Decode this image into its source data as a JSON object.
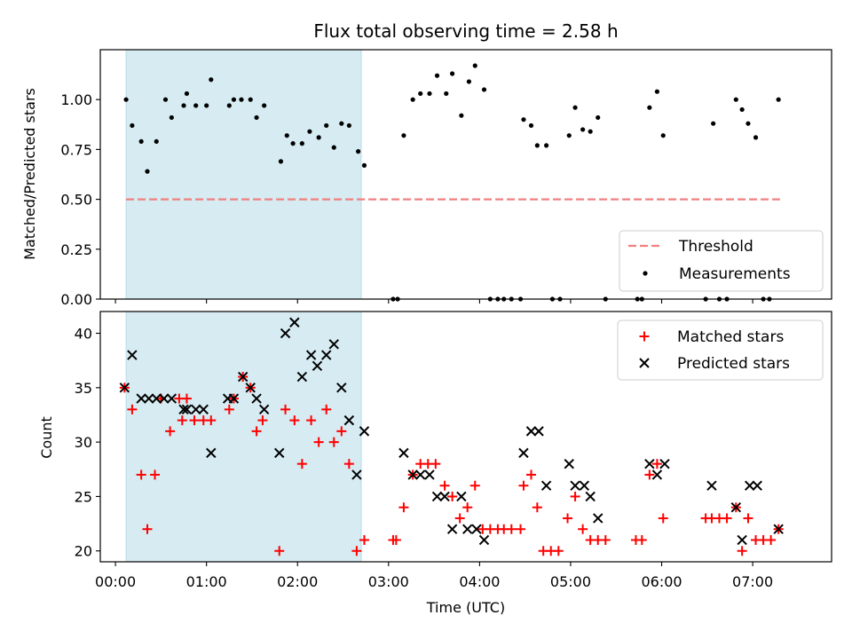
{
  "chart_data": [
    {
      "type": "scatter",
      "title": "Flux total observing time = 2.58 h",
      "xlabel": "",
      "ylabel": "Matched/Predicted stars",
      "ylim": [
        0.0,
        1.25
      ],
      "xlim": [
        "23:50",
        "07:52"
      ],
      "yticks": [
        "0.00",
        "0.25",
        "0.50",
        "0.75",
        "1.00"
      ],
      "shaded_interval": [
        "00:07",
        "02:42"
      ],
      "threshold": 0.5,
      "legend_position": "lower-right",
      "series": [
        {
          "name": "Threshold",
          "kind": "dashed-line",
          "color": "#f08080",
          "x": [
            "00:07",
            "07:18"
          ],
          "y": [
            0.5,
            0.5
          ]
        },
        {
          "name": "Measurements",
          "kind": "points",
          "color": "#000000",
          "points": [
            [
              "00:07",
              1.0
            ],
            [
              "00:11",
              0.87
            ],
            [
              "00:17",
              0.79
            ],
            [
              "00:21",
              0.64
            ],
            [
              "00:27",
              0.79
            ],
            [
              "00:33",
              1.0
            ],
            [
              "00:37",
              0.91
            ],
            [
              "00:45",
              0.97
            ],
            [
              "00:47",
              1.03
            ],
            [
              "00:53",
              0.97
            ],
            [
              "01:00",
              0.97
            ],
            [
              "01:03",
              1.1
            ],
            [
              "01:15",
              0.97
            ],
            [
              "01:18",
              1.0
            ],
            [
              "01:23",
              1.0
            ],
            [
              "01:29",
              1.0
            ],
            [
              "01:33",
              0.91
            ],
            [
              "01:38",
              0.97
            ],
            [
              "01:49",
              0.69
            ],
            [
              "01:53",
              0.82
            ],
            [
              "01:57",
              0.78
            ],
            [
              "02:03",
              0.78
            ],
            [
              "02:08",
              0.84
            ],
            [
              "02:14",
              0.81
            ],
            [
              "02:19",
              0.87
            ],
            [
              "02:24",
              0.76
            ],
            [
              "02:29",
              0.88
            ],
            [
              "02:34",
              0.87
            ],
            [
              "02:40",
              0.74
            ],
            [
              "02:44",
              0.67
            ],
            [
              "03:03",
              0.0
            ],
            [
              "03:06",
              0.0
            ],
            [
              "03:10",
              0.82
            ],
            [
              "03:16",
              1.0
            ],
            [
              "03:21",
              1.03
            ],
            [
              "03:27",
              1.03
            ],
            [
              "03:32",
              1.12
            ],
            [
              "03:38",
              1.03
            ],
            [
              "03:42",
              1.13
            ],
            [
              "03:48",
              0.92
            ],
            [
              "03:53",
              1.09
            ],
            [
              "03:57",
              1.17
            ],
            [
              "04:03",
              1.05
            ],
            [
              "04:07",
              0.0
            ],
            [
              "04:12",
              0.0
            ],
            [
              "04:16",
              0.0
            ],
            [
              "04:21",
              0.0
            ],
            [
              "04:27",
              0.0
            ],
            [
              "04:29",
              0.9
            ],
            [
              "04:34",
              0.87
            ],
            [
              "04:38",
              0.77
            ],
            [
              "04:44",
              0.77
            ],
            [
              "04:48",
              0.0
            ],
            [
              "04:53",
              0.0
            ],
            [
              "04:59",
              0.82
            ],
            [
              "05:03",
              0.96
            ],
            [
              "05:08",
              0.85
            ],
            [
              "05:13",
              0.84
            ],
            [
              "05:18",
              0.91
            ],
            [
              "05:23",
              0.0
            ],
            [
              "05:44",
              0.0
            ],
            [
              "05:47",
              0.0
            ],
            [
              "05:52",
              0.96
            ],
            [
              "05:57",
              1.04
            ],
            [
              "06:01",
              0.82
            ],
            [
              "06:29",
              0.0
            ],
            [
              "06:34",
              0.88
            ],
            [
              "06:38",
              0.0
            ],
            [
              "06:43",
              0.0
            ],
            [
              "06:49",
              1.0
            ],
            [
              "06:53",
              0.95
            ],
            [
              "06:57",
              0.88
            ],
            [
              "07:02",
              0.81
            ],
            [
              "07:07",
              0.0
            ],
            [
              "07:11",
              0.0
            ],
            [
              "07:17",
              1.0
            ]
          ]
        }
      ]
    },
    {
      "type": "scatter",
      "title": "",
      "xlabel": "Time (UTC)",
      "ylabel": "Count",
      "ylim": [
        19,
        42
      ],
      "xlim": [
        "23:50",
        "07:52"
      ],
      "yticks": [
        "20",
        "25",
        "30",
        "35",
        "40"
      ],
      "xticks": [
        "00:00",
        "01:00",
        "02:00",
        "03:00",
        "04:00",
        "05:00",
        "06:00",
        "07:00"
      ],
      "shaded_interval": [
        "00:07",
        "02:42"
      ],
      "legend_position": "upper-right",
      "series": [
        {
          "name": "Matched stars",
          "marker": "+",
          "color": "#ff0000",
          "points": [
            [
              "00:06",
              35
            ],
            [
              "00:11",
              33
            ],
            [
              "00:17",
              27
            ],
            [
              "00:21",
              22
            ],
            [
              "00:26",
              27
            ],
            [
              "00:30",
              34
            ],
            [
              "00:36",
              31
            ],
            [
              "00:42",
              34
            ],
            [
              "00:44",
              32
            ],
            [
              "00:47",
              34
            ],
            [
              "00:52",
              32
            ],
            [
              "00:58",
              32
            ],
            [
              "01:03",
              32
            ],
            [
              "01:15",
              33
            ],
            [
              "01:18",
              34
            ],
            [
              "01:24",
              36
            ],
            [
              "01:29",
              35
            ],
            [
              "01:33",
              31
            ],
            [
              "01:37",
              32
            ],
            [
              "01:48",
              20
            ],
            [
              "01:52",
              33
            ],
            [
              "01:58",
              32
            ],
            [
              "02:03",
              28
            ],
            [
              "02:09",
              32
            ],
            [
              "02:14",
              30
            ],
            [
              "02:19",
              33
            ],
            [
              "02:24",
              30
            ],
            [
              "02:29",
              31
            ],
            [
              "02:34",
              28
            ],
            [
              "02:39",
              20
            ],
            [
              "02:44",
              21
            ],
            [
              "03:03",
              21
            ],
            [
              "03:05",
              21
            ],
            [
              "03:10",
              24
            ],
            [
              "03:16",
              27
            ],
            [
              "03:21",
              28
            ],
            [
              "03:26",
              28
            ],
            [
              "03:31",
              28
            ],
            [
              "03:37",
              26
            ],
            [
              "03:42",
              25
            ],
            [
              "03:47",
              23
            ],
            [
              "03:52",
              24
            ],
            [
              "03:57",
              26
            ],
            [
              "04:02",
              22
            ],
            [
              "04:07",
              22
            ],
            [
              "04:12",
              22
            ],
            [
              "04:16",
              22
            ],
            [
              "04:21",
              22
            ],
            [
              "04:27",
              22
            ],
            [
              "04:29",
              26
            ],
            [
              "04:34",
              27
            ],
            [
              "04:38",
              24
            ],
            [
              "04:42",
              20
            ],
            [
              "04:47",
              20
            ],
            [
              "04:52",
              20
            ],
            [
              "04:58",
              23
            ],
            [
              "05:03",
              25
            ],
            [
              "05:08",
              22
            ],
            [
              "05:13",
              21
            ],
            [
              "05:18",
              21
            ],
            [
              "05:23",
              21
            ],
            [
              "05:43",
              21
            ],
            [
              "05:47",
              21
            ],
            [
              "05:52",
              27
            ],
            [
              "05:57",
              28
            ],
            [
              "06:01",
              23
            ],
            [
              "06:29",
              23
            ],
            [
              "06:33",
              23
            ],
            [
              "06:38",
              23
            ],
            [
              "06:43",
              23
            ],
            [
              "06:49",
              24
            ],
            [
              "06:53",
              20
            ],
            [
              "06:57",
              23
            ],
            [
              "07:02",
              21
            ],
            [
              "07:07",
              21
            ],
            [
              "07:12",
              21
            ],
            [
              "07:17",
              22
            ]
          ]
        },
        {
          "name": "Predicted stars",
          "marker": "x",
          "color": "#000000",
          "points": [
            [
              "00:06",
              35
            ],
            [
              "00:11",
              38
            ],
            [
              "00:17",
              34
            ],
            [
              "00:22",
              34
            ],
            [
              "00:27",
              34
            ],
            [
              "00:32",
              34
            ],
            [
              "00:37",
              34
            ],
            [
              "00:45",
              33
            ],
            [
              "00:47",
              33
            ],
            [
              "00:53",
              33
            ],
            [
              "00:58",
              33
            ],
            [
              "01:03",
              29
            ],
            [
              "01:14",
              34
            ],
            [
              "01:18",
              34
            ],
            [
              "01:24",
              36
            ],
            [
              "01:29",
              35
            ],
            [
              "01:33",
              34
            ],
            [
              "01:38",
              33
            ],
            [
              "01:48",
              29
            ],
            [
              "01:52",
              40
            ],
            [
              "01:58",
              41
            ],
            [
              "02:03",
              36
            ],
            [
              "02:09",
              38
            ],
            [
              "02:13",
              37
            ],
            [
              "02:19",
              38
            ],
            [
              "02:24",
              39
            ],
            [
              "02:29",
              35
            ],
            [
              "02:34",
              32
            ],
            [
              "02:39",
              27
            ],
            [
              "02:44",
              31
            ],
            [
              "03:10",
              29
            ],
            [
              "03:16",
              27
            ],
            [
              "03:21",
              27
            ],
            [
              "03:27",
              27
            ],
            [
              "03:32",
              25
            ],
            [
              "03:37",
              25
            ],
            [
              "03:42",
              22
            ],
            [
              "03:48",
              25
            ],
            [
              "03:52",
              22
            ],
            [
              "03:58",
              22
            ],
            [
              "04:03",
              21
            ],
            [
              "04:29",
              29
            ],
            [
              "04:34",
              31
            ],
            [
              "04:39",
              31
            ],
            [
              "04:44",
              26
            ],
            [
              "04:59",
              28
            ],
            [
              "05:03",
              26
            ],
            [
              "05:09",
              26
            ],
            [
              "05:13",
              25
            ],
            [
              "05:18",
              23
            ],
            [
              "05:52",
              28
            ],
            [
              "05:57",
              27
            ],
            [
              "06:02",
              28
            ],
            [
              "06:33",
              26
            ],
            [
              "06:49",
              24
            ],
            [
              "06:53",
              21
            ],
            [
              "06:58",
              26
            ],
            [
              "07:03",
              26
            ],
            [
              "07:17",
              22
            ]
          ]
        }
      ]
    }
  ]
}
